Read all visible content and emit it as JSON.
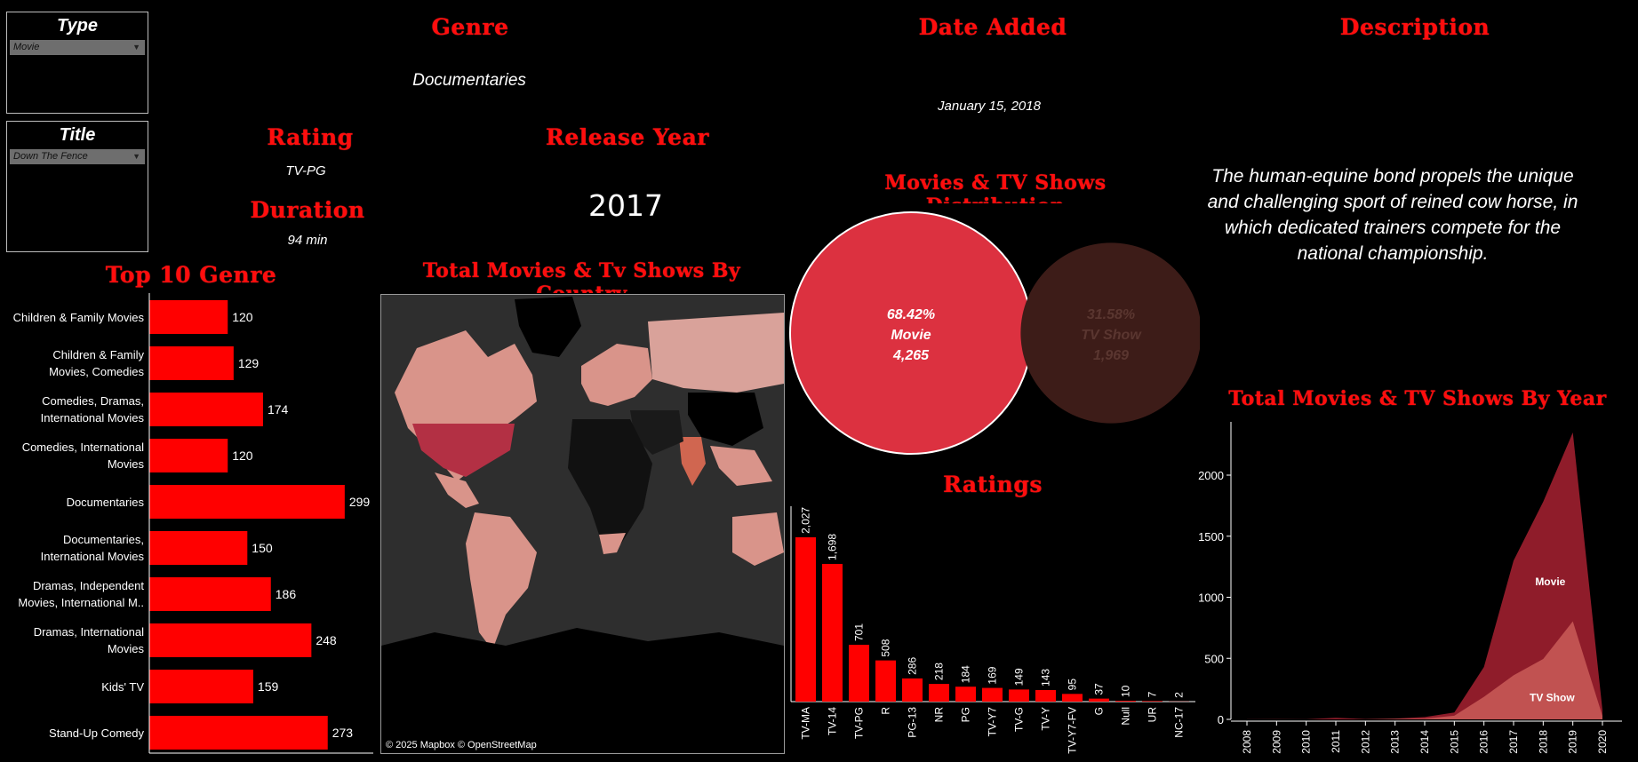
{
  "filters": {
    "type": {
      "label": "Type",
      "value": "Movie"
    },
    "title": {
      "label": "Title",
      "value": "Down The Fence"
    }
  },
  "details": {
    "genre_label": "Genre",
    "genre_value": "Documentaries",
    "date_label": "Date Added",
    "date_value": "January 15, 2018",
    "description_label": "Description",
    "description_value": "The human-equine bond propels the unique and challenging sport of reined cow horse, in which dedicated trainers compete for the national championship.",
    "rating_label": "Rating",
    "rating_value": "TV-PG",
    "release_label": "Release Year",
    "release_value": "2017",
    "duration_label": "Duration",
    "duration_value": "94 min"
  },
  "map": {
    "title": "Total Movies & Tv Shows By Country",
    "credit": "© 2025 Mapbox  © OpenStreetMap"
  },
  "colors": {
    "accent": "#ff0000",
    "movie": "#dc3140",
    "tvshow": "#3d1c18",
    "area_movie": "#8f1c2a",
    "area_tv": "#c65955"
  },
  "chart_data": [
    {
      "type": "bar",
      "title": "Top 10 Genre",
      "orientation": "horizontal",
      "categories": [
        [
          "Children & Family Movies"
        ],
        [
          "Children & Family",
          "Movies, Comedies"
        ],
        [
          "Comedies, Dramas,",
          "International Movies"
        ],
        [
          "Comedies, International",
          "Movies"
        ],
        [
          "Documentaries"
        ],
        [
          "Documentaries,",
          "International Movies"
        ],
        [
          "Dramas, Independent",
          "Movies, International M.."
        ],
        [
          "Dramas, International",
          "Movies"
        ],
        [
          "Kids' TV"
        ],
        [
          "Stand-Up Comedy"
        ]
      ],
      "values": [
        120,
        129,
        174,
        120,
        299,
        150,
        186,
        248,
        159,
        273
      ],
      "xlim": [
        0,
        340
      ]
    },
    {
      "type": "bubble",
      "title": "Movies & TV Shows Distribution",
      "items": [
        {
          "name": "Movie",
          "percent": "68.42%",
          "count": "4,265",
          "value": 4265
        },
        {
          "name": "TV Show",
          "percent": "31.58%",
          "count": "1,969",
          "value": 1969
        }
      ]
    },
    {
      "type": "bar",
      "title": "Ratings",
      "categories": [
        "TV-MA",
        "TV-14",
        "TV-PG",
        "R",
        "PG-13",
        "NR",
        "PG",
        "TV-Y7",
        "TV-G",
        "TV-Y",
        "TV-Y7-FV",
        "G",
        "Null",
        "UR",
        "NC-17"
      ],
      "values": [
        2027,
        1698,
        701,
        508,
        286,
        218,
        184,
        169,
        149,
        143,
        95,
        37,
        10,
        7,
        2
      ],
      "labels": [
        "2,027",
        "1,698",
        "701",
        "508",
        "286",
        "218",
        "184",
        "169",
        "149",
        "143",
        "95",
        "37",
        "10",
        "7",
        "2"
      ],
      "ylim": [
        0,
        2300
      ]
    },
    {
      "type": "area",
      "title": "Total Movies  & TV Shows By Year",
      "x": [
        2008,
        2009,
        2010,
        2011,
        2012,
        2013,
        2014,
        2015,
        2016,
        2017,
        2018,
        2019,
        2020
      ],
      "series": [
        {
          "name": "Movie",
          "values": [
            1,
            2,
            1,
            13,
            3,
            6,
            19,
            56,
            429,
            1300,
            1782,
            2349,
            76
          ]
        },
        {
          "name": "TV Show",
          "values": [
            0,
            0,
            0,
            0,
            0,
            5,
            6,
            30,
            185,
            361,
            495,
            803,
            28
          ]
        }
      ],
      "yticks": [
        "0",
        "500",
        "1000",
        "1500",
        "2000"
      ],
      "ylim": [
        0,
        2400
      ]
    }
  ]
}
